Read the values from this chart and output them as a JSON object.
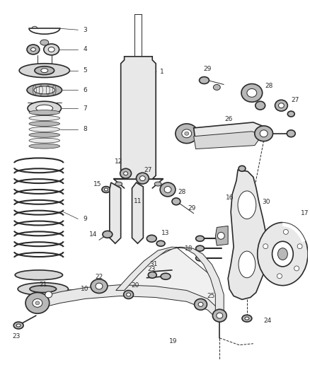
{
  "background_color": "#ffffff",
  "fig_width": 4.38,
  "fig_height": 5.33,
  "dpi": 100,
  "line_color": "#2a2a2a",
  "label_fontsize": 6.5,
  "lw_main": 1.2,
  "lw_thin": 0.7,
  "lw_thick": 1.8
}
